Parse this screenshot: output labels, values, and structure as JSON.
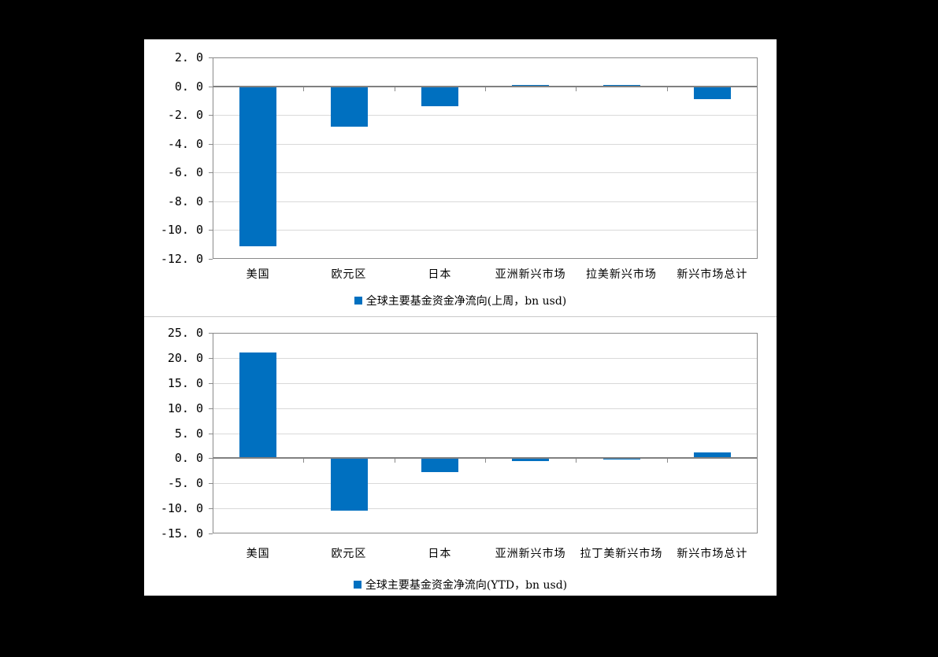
{
  "window": {
    "background": "#000000",
    "panel_background": "#ffffff"
  },
  "colors": {
    "bar": "#0070C0",
    "gridline": "#d9d9d9",
    "axis": "#808080",
    "frame": "#8a8a8a",
    "divider": "#c9c9c9",
    "text": "#000000"
  },
  "chart_data": [
    {
      "type": "bar",
      "title": "",
      "xlabel": "",
      "ylabel": "",
      "legend": "全球主要基金资金净流向(上周，bn usd)",
      "legend_position": "bottom",
      "grid": true,
      "categories": [
        "美国",
        "欧元区",
        "日本",
        "亚洲新兴市场",
        "拉美新兴市场",
        "新兴市场总计"
      ],
      "values": [
        -11.1,
        -2.8,
        -1.4,
        0.1,
        0.0,
        -0.9
      ],
      "ylim": [
        -12,
        2
      ],
      "ytick_step": 2,
      "ytick_labels": [
        "2. 0",
        "0. 0",
        "-2. 0",
        "-4. 0",
        "-6. 0",
        "-8. 0",
        "-10. 0",
        "-12. 0"
      ]
    },
    {
      "type": "bar",
      "title": "",
      "xlabel": "",
      "ylabel": "",
      "legend": "全球主要基金资金净流向(YTD，bn usd)",
      "legend_position": "bottom",
      "grid": true,
      "categories": [
        "美国",
        "欧元区",
        "日本",
        "亚洲新兴市场",
        "拉丁美新兴市场",
        "新兴市场总计"
      ],
      "values": [
        21.1,
        -10.5,
        -2.7,
        -0.6,
        -0.1,
        1.1
      ],
      "ylim": [
        -15,
        25
      ],
      "ytick_step": 5,
      "ytick_labels": [
        "25. 0",
        "20. 0",
        "15. 0",
        "10. 0",
        "5. 0",
        "0. 0",
        "-5. 0",
        "-10. 0",
        "-15. 0"
      ]
    }
  ]
}
